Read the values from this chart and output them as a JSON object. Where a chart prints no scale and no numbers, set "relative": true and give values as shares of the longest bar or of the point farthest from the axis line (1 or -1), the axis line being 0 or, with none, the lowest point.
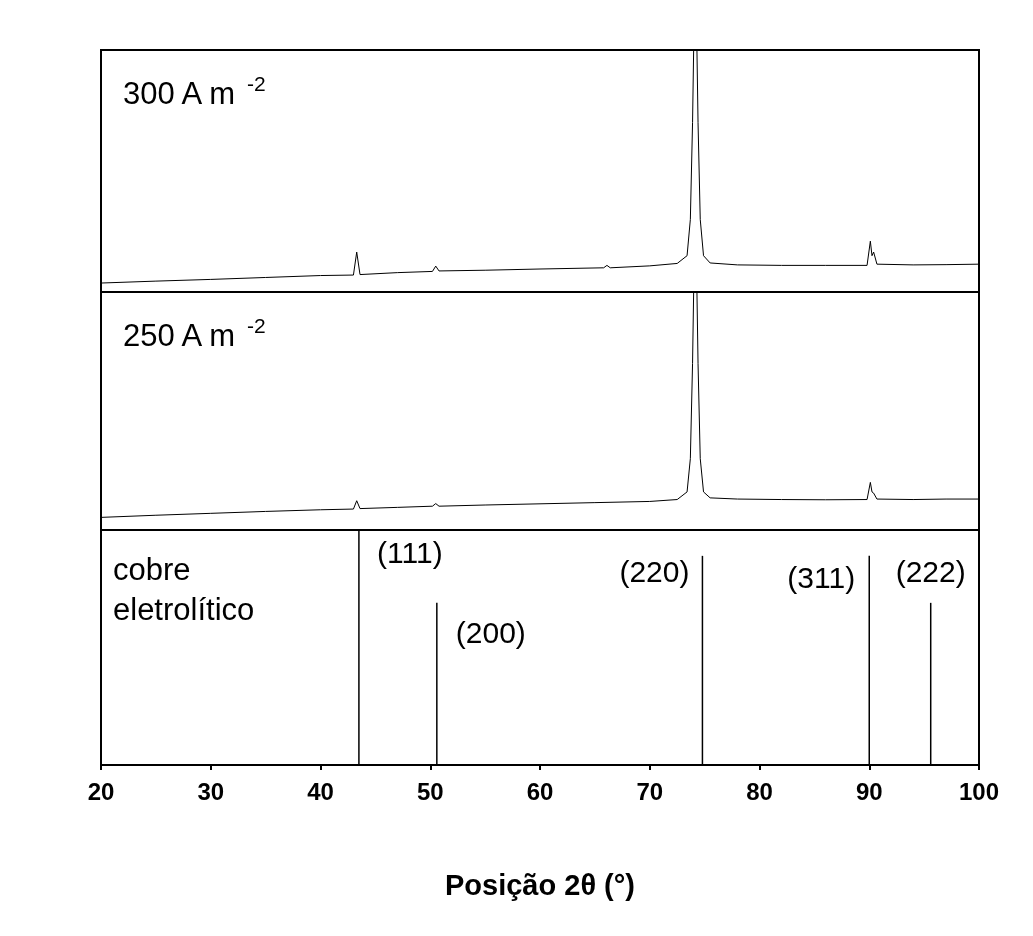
{
  "chart_data": [
    {
      "type": "line",
      "title": "300 A m$^{-2}$",
      "relative": true,
      "tick_labels": false,
      "xlim": [
        20,
        100
      ],
      "xticks": [
        20,
        30,
        40,
        50,
        60,
        70,
        80,
        90,
        100
      ],
      "series": [
        {
          "color": "#000000",
          "x": [
            20,
            25,
            30,
            35,
            40,
            43.0,
            43.3,
            43.6,
            47,
            50.2,
            50.5,
            50.8,
            55,
            60,
            65.8,
            66.1,
            66.4,
            70,
            72.5,
            73.4,
            73.7,
            73.9,
            74.0,
            74.3,
            74.4,
            74.6,
            74.9,
            75.5,
            78,
            82,
            86,
            89.8,
            90.1,
            90.25,
            90.4,
            90.7,
            94,
            97,
            100
          ],
          "values": [
            0.037,
            0.045,
            0.052,
            0.06,
            0.068,
            0.07,
            0.165,
            0.072,
            0.08,
            0.085,
            0.107,
            0.087,
            0.09,
            0.095,
            0.1,
            0.11,
            0.1,
            0.108,
            0.118,
            0.15,
            0.3,
            0.7,
            1,
            1,
            0.7,
            0.3,
            0.15,
            0.12,
            0.112,
            0.11,
            0.11,
            0.11,
            0.21,
            0.15,
            0.165,
            0.115,
            0.112,
            0.113,
            0.115
          ]
        }
      ]
    },
    {
      "type": "line",
      "title": "250 A m$^{-2}$",
      "relative": true,
      "tick_labels": false,
      "xlim": [
        20,
        100
      ],
      "xticks": [
        20,
        30,
        40,
        50,
        60,
        70,
        80,
        90,
        100
      ],
      "series": [
        {
          "color": "#000000",
          "x": [
            20,
            25,
            30,
            35,
            40,
            43.0,
            43.3,
            43.6,
            47,
            50.2,
            50.5,
            50.8,
            55,
            60,
            65,
            70,
            72.5,
            73.4,
            73.7,
            73.9,
            74.0,
            74.3,
            74.4,
            74.6,
            74.9,
            75.5,
            78,
            82,
            86,
            89.8,
            90.1,
            90.25,
            90.4,
            90.7,
            94,
            97,
            100
          ],
          "values": [
            0.053,
            0.062,
            0.07,
            0.078,
            0.085,
            0.088,
            0.123,
            0.09,
            0.095,
            0.1,
            0.111,
            0.1,
            0.105,
            0.11,
            0.115,
            0.12,
            0.128,
            0.16,
            0.3,
            0.7,
            1,
            1,
            0.7,
            0.3,
            0.16,
            0.135,
            0.13,
            0.128,
            0.127,
            0.128,
            0.2,
            0.16,
            0.155,
            0.13,
            0.128,
            0.13,
            0.13
          ]
        }
      ]
    },
    {
      "type": "bar",
      "title": "cobre eletrolítico",
      "relative": true,
      "tick_labels": "x",
      "xlabel": "Posição 2θ (°)",
      "xlim": [
        20,
        100
      ],
      "xticks": [
        20,
        30,
        40,
        50,
        60,
        70,
        80,
        90,
        100
      ],
      "x": [
        43.5,
        50.6,
        74.8,
        90.0,
        95.6
      ],
      "values": [
        1,
        0.69,
        0.89,
        0.89,
        0.69
      ],
      "color": "#000000",
      "annotations": [
        "(111)",
        "(200)",
        "(220)",
        "(311)",
        "(222)"
      ]
    }
  ]
}
